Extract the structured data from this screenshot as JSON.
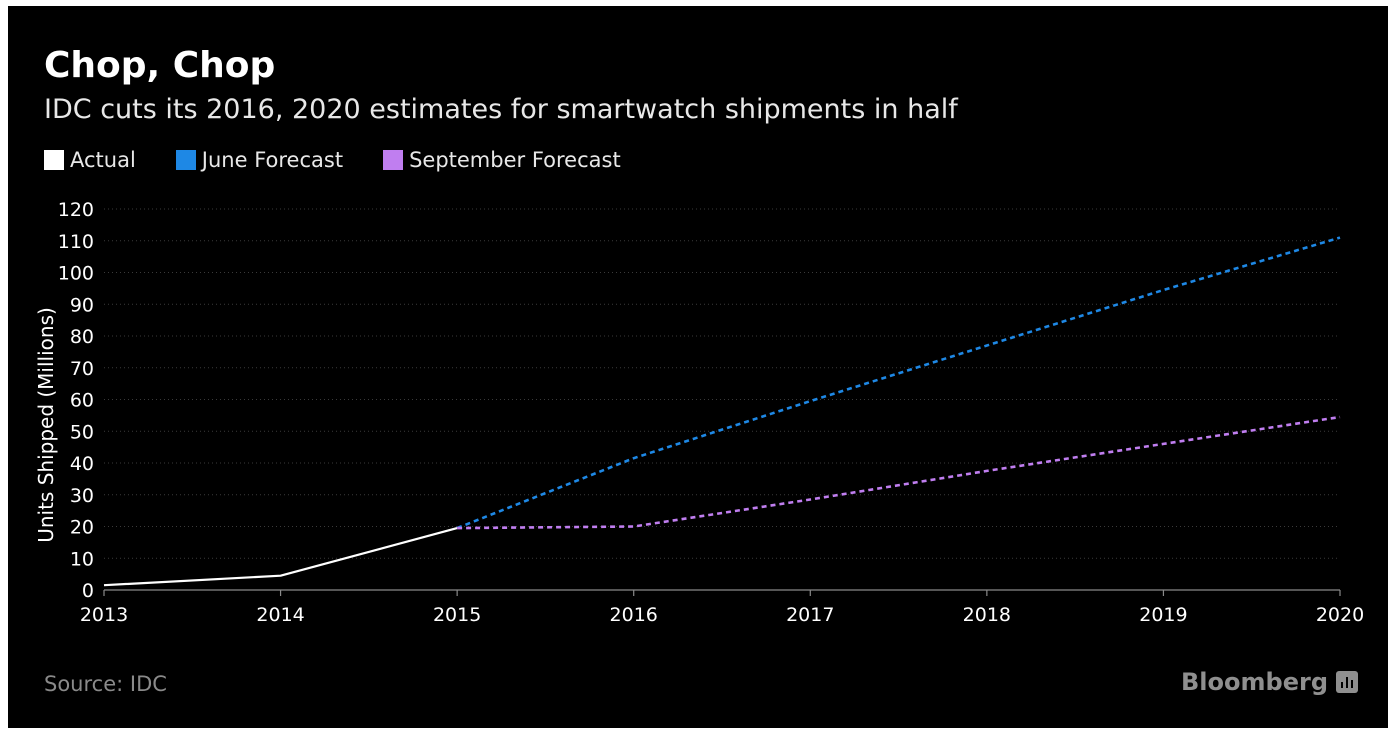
{
  "title": "Chop, Chop",
  "subtitle": "IDC cuts its 2016, 2020 estimates for smartwatch shipments in half",
  "source": "Source: IDC",
  "brand": "Bloomberg",
  "colors": {
    "background": "#000000",
    "actual": "#ffffff",
    "june": "#1e88e5",
    "september": "#c07ef0",
    "grid": "#3a3a3a",
    "axis": "#8a8a8a",
    "text": "#ffffff"
  },
  "legend": [
    {
      "label": "Actual",
      "color": "#ffffff"
    },
    {
      "label": "June Forecast",
      "color": "#1e88e5"
    },
    {
      "label": "September Forecast",
      "color": "#c07ef0"
    }
  ],
  "chart_data": {
    "type": "line",
    "title": "Chop, Chop",
    "subtitle": "IDC cuts its 2016, 2020 estimates for smartwatch shipments in half",
    "xlabel": "",
    "ylabel": "Units Shipped (Millions)",
    "x_ticks": [
      2013,
      2014,
      2015,
      2016,
      2017,
      2018,
      2019,
      2020
    ],
    "y_ticks": [
      0,
      10,
      20,
      30,
      40,
      50,
      60,
      70,
      80,
      90,
      100,
      110,
      120
    ],
    "xlim": [
      2013,
      2020
    ],
    "ylim": [
      0,
      120
    ],
    "grid": true,
    "legend_position": "top-left",
    "series": [
      {
        "name": "Actual",
        "style": "solid",
        "color": "#ffffff",
        "x": [
          2013,
          2014,
          2015
        ],
        "y": [
          1.5,
          4.5,
          19.5
        ]
      },
      {
        "name": "June Forecast",
        "style": "dotted",
        "color": "#1e88e5",
        "x": [
          2015,
          2016,
          2017,
          2018,
          2019,
          2020
        ],
        "y": [
          19.5,
          41.5,
          59.5,
          77,
          94.5,
          111
        ]
      },
      {
        "name": "September Forecast",
        "style": "dotted",
        "color": "#c07ef0",
        "x": [
          2015,
          2016,
          2017,
          2018,
          2019,
          2020
        ],
        "y": [
          19.5,
          20,
          28.5,
          37.5,
          46,
          54.5
        ]
      }
    ]
  }
}
